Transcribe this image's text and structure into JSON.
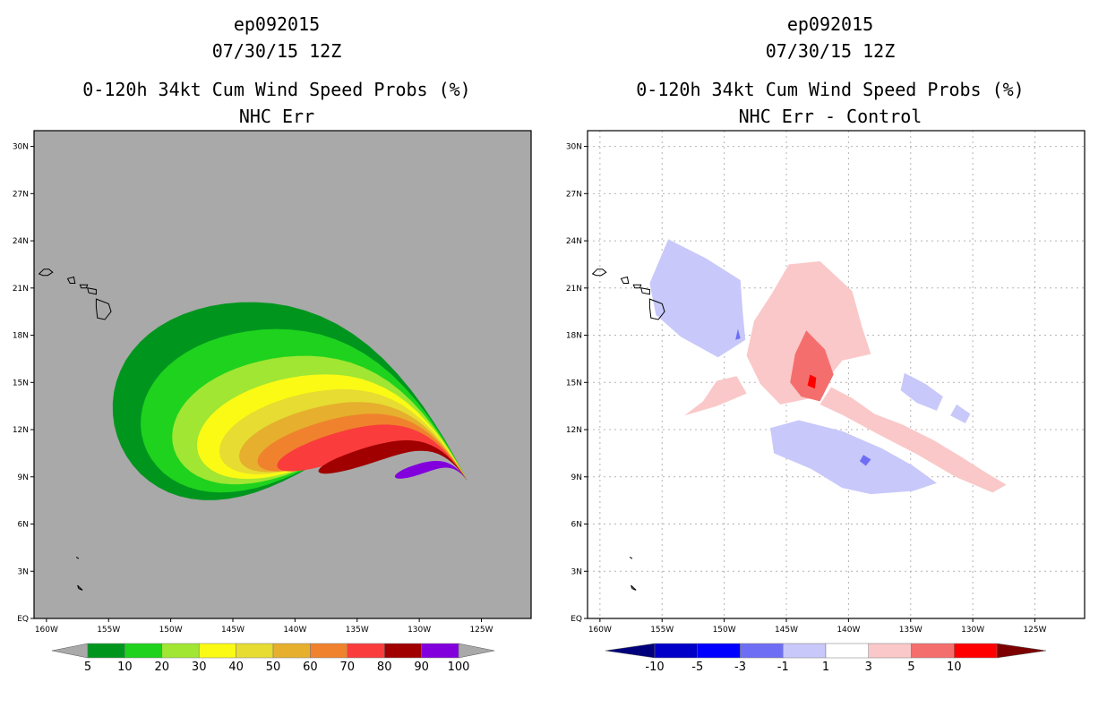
{
  "chart_data": [
    {
      "type": "heatmap",
      "storm_id": "ep092015",
      "datetime": "07/30/15 12Z",
      "title": "0-120h 34kt Cum Wind Speed Probs (%)",
      "subtitle": "NHC Err",
      "x_ticks": [
        "160W",
        "155W",
        "150W",
        "145W",
        "140W",
        "135W",
        "130W",
        "125W"
      ],
      "y_ticks": [
        "EQ",
        "3N",
        "6N",
        "9N",
        "12N",
        "15N",
        "18N",
        "21N",
        "24N",
        "27N",
        "30N"
      ],
      "xlim": [
        -161,
        -121
      ],
      "ylim": [
        0,
        31
      ],
      "grid": false,
      "background_color": "#a9a9a9",
      "colorbar": {
        "labels": [
          "5",
          "10",
          "20",
          "30",
          "40",
          "50",
          "60",
          "70",
          "80",
          "90",
          "100"
        ],
        "colors": [
          "#00961e",
          "#1ed21e",
          "#a0e632",
          "#fafa14",
          "#e6dc32",
          "#e6af2d",
          "#f0822d",
          "#fa3c3c",
          "#a00000",
          "#8200dc"
        ],
        "under_color": "#a9a9a9",
        "over_color": "#a9a9a9"
      },
      "probability_bands": [
        {
          "min_pct": 5,
          "center": [
            -141.0,
            15.0
          ],
          "half_length_deg": 14.0,
          "half_width_deg": 8.2
        },
        {
          "min_pct": 10,
          "center": [
            -139.8,
            14.3
          ],
          "half_length_deg": 13.0,
          "half_width_deg": 6.6
        },
        {
          "min_pct": 20,
          "center": [
            -138.5,
            13.6
          ],
          "half_length_deg": 11.8,
          "half_width_deg": 5.0
        },
        {
          "min_pct": 30,
          "center": [
            -137.5,
            13.1
          ],
          "half_length_deg": 10.8,
          "half_width_deg": 3.9
        },
        {
          "min_pct": 40,
          "center": [
            -136.6,
            12.7
          ],
          "half_length_deg": 9.9,
          "half_width_deg": 3.0
        },
        {
          "min_pct": 50,
          "center": [
            -135.8,
            12.3
          ],
          "half_length_deg": 9.1,
          "half_width_deg": 2.3
        },
        {
          "min_pct": 60,
          "center": [
            -135.0,
            11.9
          ],
          "half_length_deg": 8.4,
          "half_width_deg": 1.7
        },
        {
          "min_pct": 70,
          "center": [
            -134.2,
            11.5
          ],
          "half_length_deg": 7.6,
          "half_width_deg": 1.2
        },
        {
          "min_pct": 80,
          "center": [
            -132.4,
            10.8
          ],
          "half_length_deg": 6.0,
          "half_width_deg": 0.7
        },
        {
          "min_pct": 90,
          "center": [
            -129.2,
            9.7
          ],
          "half_length_deg": 2.9,
          "half_width_deg": 0.45
        }
      ]
    },
    {
      "type": "heatmap",
      "storm_id": "ep092015",
      "datetime": "07/30/15 12Z",
      "title": "0-120h 34kt Cum Wind Speed Probs (%)",
      "subtitle": "NHC Err - Control",
      "x_ticks": [
        "160W",
        "155W",
        "150W",
        "145W",
        "140W",
        "135W",
        "130W",
        "125W"
      ],
      "y_ticks": [
        "EQ",
        "3N",
        "6N",
        "9N",
        "12N",
        "15N",
        "18N",
        "21N",
        "24N",
        "27N",
        "30N"
      ],
      "xlim": [
        -161,
        -121
      ],
      "ylim": [
        0,
        31
      ],
      "grid": true,
      "background_color": "#ffffff",
      "colorbar": {
        "labels": [
          "-10",
          "-5",
          "-3",
          "-1",
          "1",
          "3",
          "5",
          "10"
        ],
        "colors": [
          "#0000c8",
          "#0000ff",
          "#6e6ef5",
          "#c8c8fa",
          "#ffffff",
          "#fac8c8",
          "#f56e6e",
          "#ff0000"
        ],
        "under_color": "#00007d",
        "over_color": "#7d0000"
      },
      "difference_regions": [
        {
          "range": "-3 to -1",
          "lonlat": [
            [
              -154.5,
              24.1
            ],
            [
              -151.5,
              22.9
            ],
            [
              -148.7,
              21.5
            ],
            [
              -148.5,
              19.4
            ],
            [
              -148.3,
              17.7
            ],
            [
              -150.5,
              16.6
            ],
            [
              -153.5,
              17.9
            ],
            [
              -155.5,
              19.3
            ],
            [
              -156,
              21.3
            ]
          ]
        },
        {
          "range": "-3 to -1",
          "lonlat": [
            [
              -146.3,
              12.1
            ],
            [
              -144,
              12.6
            ],
            [
              -140.5,
              11.9
            ],
            [
              -137.3,
              10.8
            ],
            [
              -134.8,
              9.7
            ],
            [
              -132.9,
              8.6
            ],
            [
              -134.8,
              8.1
            ],
            [
              -138.2,
              7.9
            ],
            [
              -140.5,
              8.3
            ],
            [
              -143,
              9.5
            ],
            [
              -146,
              10.5
            ]
          ]
        },
        {
          "range": "-3 to -1",
          "lonlat": [
            [
              -135.5,
              15.6
            ],
            [
              -133.8,
              14.9
            ],
            [
              -132.4,
              14.1
            ],
            [
              -132.9,
              13.2
            ],
            [
              -134.5,
              13.7
            ],
            [
              -135.8,
              14.5
            ]
          ]
        },
        {
          "range": "-3 to -1",
          "lonlat": [
            [
              -131.3,
              13.6
            ],
            [
              -130.2,
              13.0
            ],
            [
              -130.6,
              12.4
            ],
            [
              -131.8,
              12.9
            ]
          ]
        },
        {
          "range": "1 to 3",
          "lonlat": [
            [
              -146.2,
              20.6
            ],
            [
              -144.8,
              22.5
            ],
            [
              -142.3,
              22.7
            ],
            [
              -139.7,
              20.8
            ],
            [
              -138.9,
              18.5
            ],
            [
              -138.2,
              16.8
            ],
            [
              -140.5,
              16.4
            ],
            [
              -141.9,
              15.0
            ],
            [
              -143.0,
              14.0
            ],
            [
              -145.5,
              13.6
            ],
            [
              -147.1,
              14.9
            ],
            [
              -148.2,
              16.7
            ],
            [
              -147.6,
              18.9
            ]
          ]
        },
        {
          "range": "1 to 3",
          "lonlat": [
            [
              -141.4,
              14.7
            ],
            [
              -139.7,
              14.0
            ],
            [
              -137.9,
              13.0
            ],
            [
              -135.6,
              12.3
            ],
            [
              -133.1,
              11.3
            ],
            [
              -131.0,
              10.3
            ],
            [
              -129.0,
              9.3
            ],
            [
              -127.3,
              8.5
            ],
            [
              -128.4,
              8.0
            ],
            [
              -131.4,
              9.0
            ],
            [
              -134.4,
              10.4
            ],
            [
              -137.6,
              11.7
            ],
            [
              -140.4,
              12.9
            ],
            [
              -142.3,
              13.6
            ]
          ]
        },
        {
          "range": "1 to 3",
          "lonlat": [
            [
              -150.6,
              15.1
            ],
            [
              -149.0,
              15.4
            ],
            [
              -148.2,
              14.3
            ],
            [
              -150.6,
              13.5
            ],
            [
              -153.2,
              12.9
            ],
            [
              -151.7,
              13.8
            ]
          ]
        },
        {
          "range": "3 to 5",
          "lonlat": [
            [
              -143.4,
              18.3
            ],
            [
              -141.9,
              17.1
            ],
            [
              -141.2,
              15.5
            ],
            [
              -142.3,
              13.8
            ],
            [
              -143.8,
              14.1
            ],
            [
              -144.7,
              15.0
            ],
            [
              -144.3,
              16.8
            ]
          ]
        },
        {
          "range": "5 to 10",
          "lonlat": [
            [
              -143.1,
              15.5
            ],
            [
              -142.6,
              15.3
            ],
            [
              -142.7,
              14.6
            ],
            [
              -143.3,
              14.8
            ]
          ]
        },
        {
          "range": "-5 to -3",
          "lonlat": [
            [
              -148.9,
              18.4
            ],
            [
              -148.7,
              17.8
            ],
            [
              -149.1,
              17.7
            ]
          ]
        },
        {
          "range": "-5 to -3",
          "lonlat": [
            [
              -138.8,
              10.4
            ],
            [
              -138.2,
              10.1
            ],
            [
              -138.6,
              9.7
            ],
            [
              -139.1,
              10.0
            ]
          ]
        }
      ]
    }
  ]
}
